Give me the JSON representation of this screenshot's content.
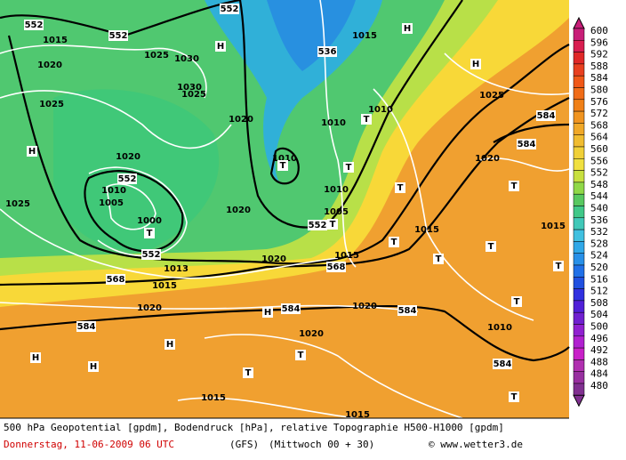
{
  "legend": {
    "values": [
      600,
      596,
      592,
      588,
      584,
      580,
      576,
      572,
      568,
      564,
      560,
      556,
      552,
      548,
      544,
      540,
      536,
      532,
      528,
      524,
      520,
      516,
      512,
      508,
      504,
      500,
      496,
      492,
      488,
      484,
      480
    ]
  },
  "map": {
    "labels": [
      "552",
      "552",
      "552",
      "H",
      "536",
      "1015",
      "1025",
      "1030",
      "1030",
      "1025",
      "1020",
      "1025",
      "H",
      "1020",
      "1015",
      "H",
      "H",
      "1025",
      "584",
      "584",
      "1010",
      "1010",
      "T",
      "1010",
      "T",
      "T",
      "1020",
      "552",
      "1010",
      "1005",
      "1000",
      "T",
      "1025",
      "1020",
      "1010",
      "1005",
      "552",
      "T",
      "T",
      "1020",
      "T",
      "1015",
      "T",
      "T",
      "T",
      "1015",
      "T",
      "568",
      "1015",
      "1020",
      "552",
      "1013",
      "568",
      "1015",
      "1020",
      "H",
      "584",
      "1020",
      "584",
      "T",
      "1010",
      "584",
      "H",
      "H",
      "H",
      "1020",
      "T",
      "584",
      "T",
      "1015",
      "T",
      "1015"
    ]
  },
  "footer": {
    "line1": "500 hPa Geopotential [gpdm], Bodendruck [hPa], relative Topographie H500-H1000 [gpdm]",
    "date": "Donnerstag, 11-06-2009  06 UTC",
    "model": "(GFS)",
    "run": "(Mittwoch 00 + 30)",
    "credit": "© www.wetter3.de"
  }
}
